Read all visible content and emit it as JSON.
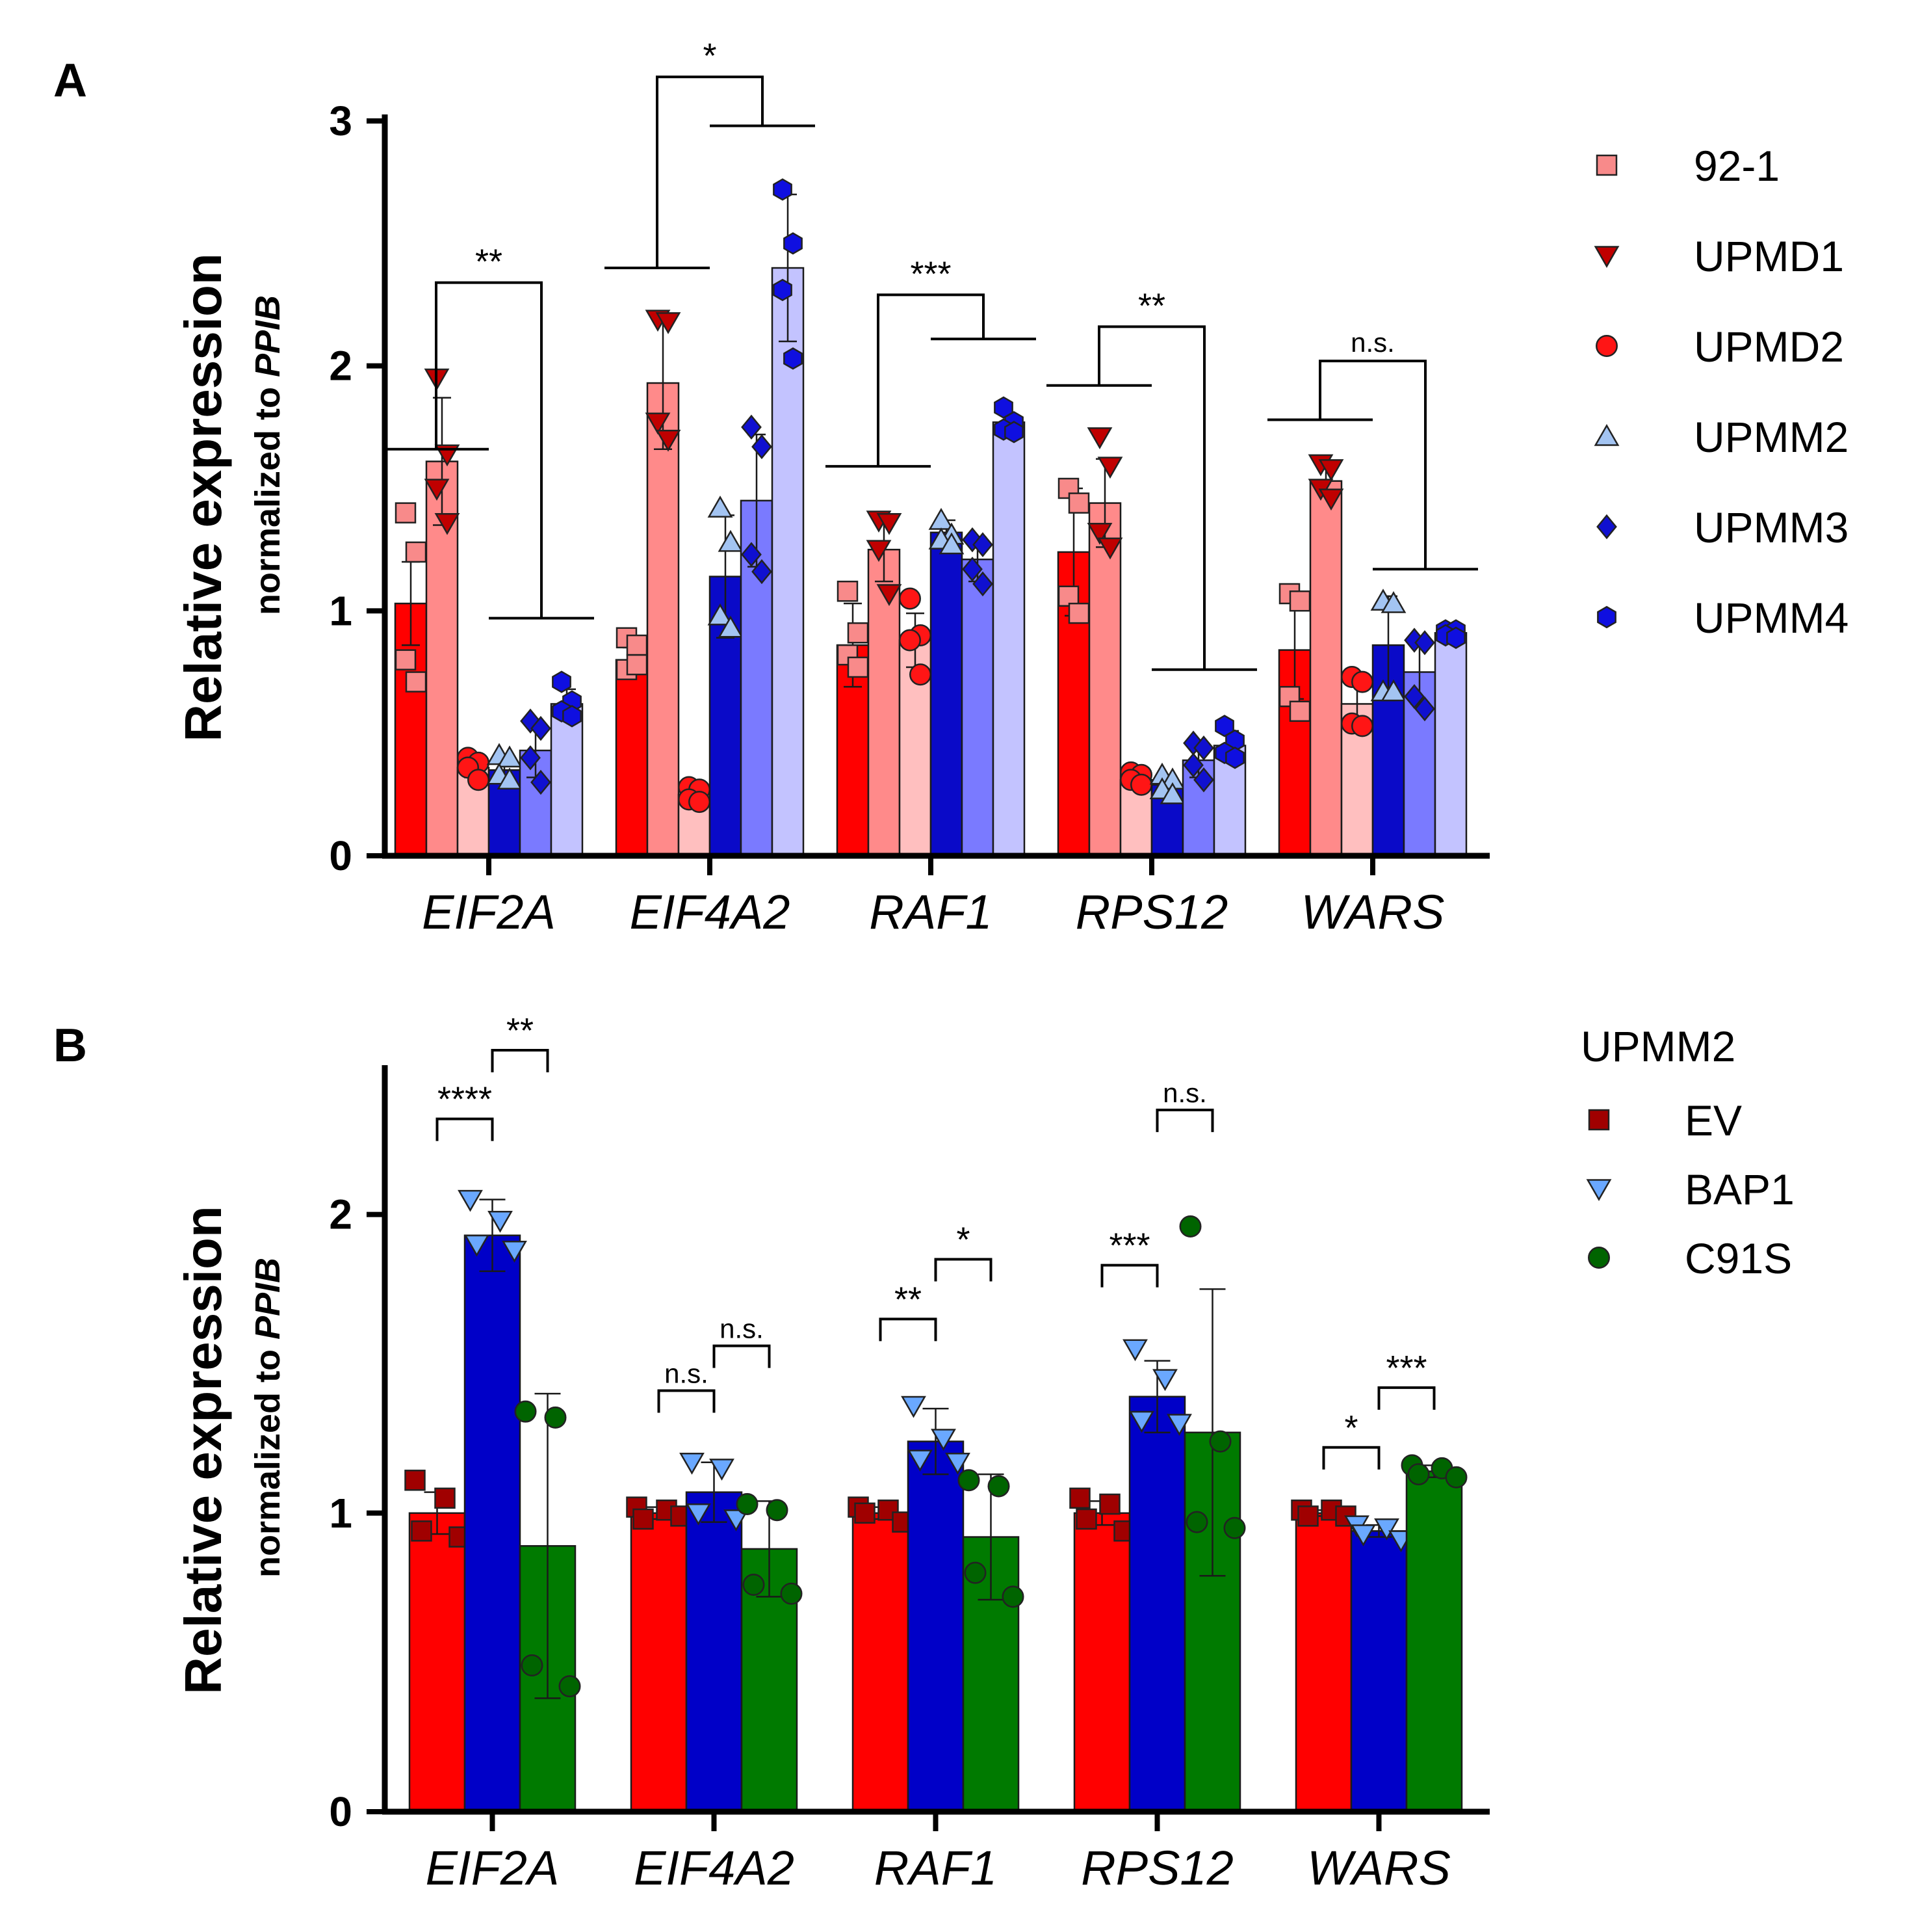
{
  "chart_data": [
    {
      "panel": "A",
      "type": "bar",
      "ylabel": "Relative expression",
      "ylabel_sub_prefix": "normalized to ",
      "ylabel_sub_italic": "PPIB",
      "ylim": [
        0,
        3
      ],
      "yticks": [
        "0",
        "1",
        "2",
        "3"
      ],
      "categories": [
        "EIF2A",
        "EIF4A2",
        "RAF1",
        "RPS12",
        "WARS"
      ],
      "series": [
        {
          "name": "92-1",
          "marker": "square",
          "color": "#ff0000",
          "marker_color": "#f88a8a",
          "values": [
            1.03,
            0.8,
            0.86,
            1.24,
            0.84
          ],
          "sd": [
            0.17,
            0.05,
            0.17,
            0.26,
            0.2
          ],
          "points": [
            [
              1.4,
              1.24,
              0.8,
              0.71
            ],
            [
              0.89,
              0.86,
              0.76,
              0.78
            ],
            [
              1.08,
              0.91,
              0.82,
              0.77
            ],
            [
              1.5,
              1.44,
              1.06,
              0.99
            ],
            [
              1.07,
              1.04,
              0.65,
              0.59
            ]
          ]
        },
        {
          "name": "UPMD1",
          "marker": "triangle-down",
          "color": "#ff8a8a",
          "marker_color": "#c00000",
          "values": [
            1.61,
            1.93,
            1.25,
            1.44,
            1.53
          ],
          "sd": [
            0.26,
            0.27,
            0.13,
            0.18,
            0.05
          ],
          "points": [
            [
              1.95,
              1.64,
              1.5,
              1.36
            ],
            [
              2.19,
              2.18,
              1.77,
              1.7
            ],
            [
              1.37,
              1.36,
              1.25,
              1.07
            ],
            [
              1.71,
              1.59,
              1.32,
              1.26
            ],
            [
              1.6,
              1.58,
              1.5,
              1.46
            ]
          ]
        },
        {
          "name": "UPMD2",
          "marker": "circle",
          "color": "#ffbfbf",
          "marker_color": "#ff1515",
          "values": [
            0.36,
            0.25,
            0.88,
            0.31,
            0.62
          ],
          "sd": [
            0.04,
            0.04,
            0.11,
            0.02,
            0.09
          ],
          "points": [
            [
              0.4,
              0.38,
              0.36,
              0.31
            ],
            [
              0.28,
              0.27,
              0.23,
              0.22
            ],
            [
              1.05,
              0.9,
              0.88,
              0.74
            ],
            [
              0.34,
              0.33,
              0.31,
              0.29
            ],
            [
              0.73,
              0.71,
              0.54,
              0.53
            ]
          ]
        },
        {
          "name": "UPMM2",
          "marker": "triangle-up",
          "color": "#0a0ac8",
          "marker_color": "#a3c4f2",
          "values": [
            0.35,
            1.14,
            1.32,
            0.29,
            0.86
          ],
          "sd": [
            0.05,
            0.25,
            0.05,
            0.03,
            0.2
          ],
          "points": [
            [
              0.41,
              0.4,
              0.33,
              0.31
            ],
            [
              1.42,
              1.28,
              0.98,
              0.93
            ],
            [
              1.37,
              1.31,
              1.29,
              1.27
            ],
            [
              0.33,
              0.31,
              0.27,
              0.25
            ],
            [
              1.04,
              1.03,
              0.67,
              0.67
            ]
          ]
        },
        {
          "name": "UPMM3",
          "marker": "diamond",
          "color": "#7a7aff",
          "marker_color": "#1010d0",
          "values": [
            0.43,
            1.45,
            1.21,
            0.39,
            0.75
          ],
          "sd": [
            0.11,
            0.27,
            0.09,
            0.07,
            0.13
          ],
          "points": [
            [
              0.55,
              0.52,
              0.4,
              0.3
            ],
            [
              1.75,
              1.67,
              1.23,
              1.16
            ],
            [
              1.29,
              1.27,
              1.17,
              1.11
            ],
            [
              0.46,
              0.44,
              0.37,
              0.31
            ],
            [
              0.88,
              0.87,
              0.65,
              0.6
            ]
          ]
        },
        {
          "name": "UPMM4",
          "marker": "hexagon",
          "color": "#c3c3ff",
          "marker_color": "#0f0fe0",
          "values": [
            0.62,
            2.4,
            1.77,
            0.45,
            0.91
          ],
          "sd": [
            0.06,
            0.3,
            0.03,
            0.06,
            0.01
          ],
          "points": [
            [
              0.71,
              0.63,
              0.59,
              0.57
            ],
            [
              2.72,
              2.5,
              2.31,
              2.03
            ],
            [
              1.83,
              1.77,
              1.74,
              1.73
            ],
            [
              0.53,
              0.47,
              0.42,
              0.4
            ],
            [
              0.92,
              0.92,
              0.9,
              0.89
            ]
          ]
        }
      ],
      "comparisons": [
        {
          "label": "**",
          "left": 1.66,
          "right": 0.97,
          "top": 2.34,
          "left_span": [
            0,
            2
          ],
          "right_span": [
            3,
            5
          ]
        },
        {
          "label": "*",
          "left": 2.4,
          "right": 2.98,
          "top": 3.18,
          "left_span": [
            0,
            2
          ],
          "right_span": [
            3,
            5
          ]
        },
        {
          "label": "***",
          "left": 1.59,
          "right": 2.11,
          "top": 2.29,
          "left_span": [
            0,
            2
          ],
          "right_span": [
            3,
            5
          ]
        },
        {
          "label": "**",
          "left": 1.92,
          "right": 0.76,
          "top": 2.16,
          "left_span": [
            0,
            2
          ],
          "right_span": [
            3,
            5
          ]
        },
        {
          "label": "n.s.",
          "left": 1.78,
          "right": 1.17,
          "top": 2.02,
          "left_span": [
            0,
            2
          ],
          "right_span": [
            3,
            5
          ]
        }
      ]
    },
    {
      "panel": "B",
      "type": "bar",
      "legend_title": "UPMM2",
      "ylabel": "Relative expression",
      "ylabel_sub_prefix": "normalized to ",
      "ylabel_sub_italic": "PPIB",
      "ylim": [
        0,
        2.5
      ],
      "yticks": [
        "0",
        "1",
        "2"
      ],
      "categories": [
        "EIF2A",
        "EIF4A2",
        "RAF1",
        "RPS12",
        "WARS"
      ],
      "series": [
        {
          "name": "EV",
          "marker": "square",
          "color": "#ff0000",
          "marker_color": "#a00000",
          "values": [
            1.0,
            1.0,
            1.0,
            1.0,
            1.0
          ],
          "sd": [
            0.07,
            0.02,
            0.02,
            0.04,
            0.01
          ],
          "points": [
            [
              1.11,
              1.05,
              0.94,
              0.92
            ],
            [
              1.02,
              1.01,
              0.98,
              0.99
            ],
            [
              1.02,
              1.01,
              1.0,
              0.97
            ],
            [
              1.05,
              1.03,
              0.98,
              0.94
            ],
            [
              1.01,
              1.01,
              0.99,
              0.99
            ]
          ]
        },
        {
          "name": "BAP1",
          "marker": "triangle-down",
          "color": "#0000c8",
          "marker_color": "#6aa8ff",
          "values": [
            1.93,
            1.07,
            1.24,
            1.39,
            0.94
          ],
          "sd": [
            0.12,
            0.1,
            0.11,
            0.12,
            0.02
          ],
          "points": [
            [
              2.05,
              1.98,
              1.9,
              1.88
            ],
            [
              1.17,
              1.15,
              1.0,
              0.98
            ],
            [
              1.36,
              1.25,
              1.18,
              1.17
            ],
            [
              1.55,
              1.45,
              1.31,
              1.3
            ],
            [
              0.96,
              0.95,
              0.93,
              0.91
            ]
          ]
        },
        {
          "name": "C91S",
          "marker": "circle",
          "color": "#007a00",
          "marker_color": "#006400",
          "values": [
            0.89,
            0.88,
            0.92,
            1.27,
            1.14
          ],
          "sd": [
            0.51,
            0.16,
            0.21,
            0.48,
            0.02
          ],
          "points": [
            [
              1.34,
              1.32,
              0.49,
              0.42
            ],
            [
              1.03,
              1.01,
              0.76,
              0.73
            ],
            [
              1.11,
              1.09,
              0.8,
              0.72
            ],
            [
              1.96,
              1.24,
              0.97,
              0.95
            ],
            [
              1.16,
              1.15,
              1.13,
              1.12
            ]
          ]
        }
      ],
      "comparisons": [
        {
          "label": "****",
          "group": 0,
          "from": 0,
          "to": 1,
          "y": 2.32
        },
        {
          "label": "**",
          "group": 0,
          "from": 1,
          "to": 2,
          "y": 2.55
        },
        {
          "label": "n.s.",
          "group": 1,
          "from": 0,
          "to": 1,
          "y": 1.41
        },
        {
          "label": "n.s.",
          "group": 1,
          "from": 1,
          "to": 2,
          "y": 1.56
        },
        {
          "label": "**",
          "group": 2,
          "from": 0,
          "to": 1,
          "y": 1.65
        },
        {
          "label": "*",
          "group": 2,
          "from": 1,
          "to": 2,
          "y": 1.85
        },
        {
          "label": "n.s.",
          "group": 3,
          "from": 1,
          "to": 2,
          "y": 2.35
        },
        {
          "label": "***",
          "group": 3,
          "from": 0,
          "to": 1,
          "y": 1.83
        },
        {
          "label": "*",
          "group": 4,
          "from": 0,
          "to": 1,
          "y": 1.22
        },
        {
          "label": "***",
          "group": 4,
          "from": 1,
          "to": 2,
          "y": 1.42
        }
      ]
    }
  ]
}
